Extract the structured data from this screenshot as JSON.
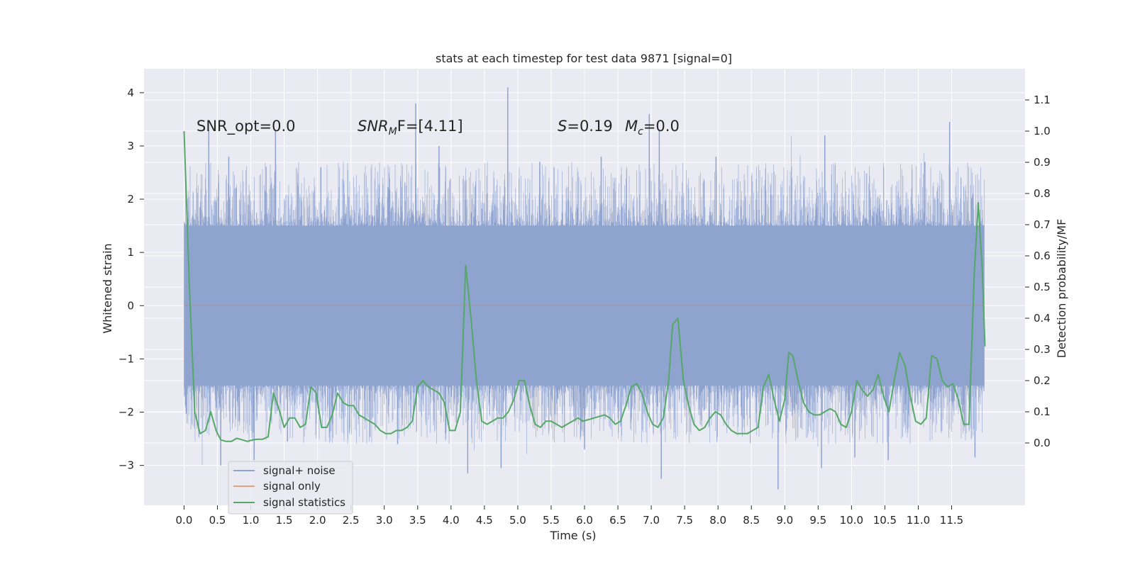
{
  "chart_data": {
    "type": "line",
    "title": "stats at each timestep for test data 9871 [signal=0]",
    "xlabel": "Time (s)",
    "ylabel_left": "Whitened strain",
    "ylabel_right": "Detection probability/MF",
    "xlim": [
      -0.6,
      12.6
    ],
    "ylim_left": [
      -3.75,
      4.45
    ],
    "ylim_right": [
      -0.2,
      1.2
    ],
    "x_ticks": [
      0.0,
      0.5,
      1.0,
      1.5,
      2.0,
      2.5,
      3.0,
      3.5,
      4.0,
      4.5,
      5.0,
      5.5,
      6.0,
      6.5,
      7.0,
      7.5,
      8.0,
      8.5,
      9.0,
      9.5,
      10.0,
      10.5,
      11.0,
      11.5
    ],
    "x_tick_labels": [
      "0.0",
      "0.5",
      "1.0",
      "1.5",
      "2.0",
      "2.5",
      "3.0",
      "3.5",
      "4.0",
      "4.5",
      "5.0",
      "5.5",
      "6.0",
      "6.5",
      "7.0",
      "7.5",
      "8.0",
      "8.5",
      "9.0",
      "9.5",
      "10.0",
      "10.5",
      "11.0",
      "11.5"
    ],
    "y_ticks_left": [
      -3,
      -2,
      -1,
      0,
      1,
      2,
      3,
      4
    ],
    "y_tick_labels_left": [
      "−3",
      "−2",
      "−1",
      "0",
      "1",
      "2",
      "3",
      "4"
    ],
    "y_ticks_right": [
      0.0,
      0.1,
      0.2,
      0.3,
      0.4,
      0.5,
      0.6,
      0.7,
      0.8,
      0.9,
      1.0,
      1.1
    ],
    "y_tick_labels_right": [
      "0.0",
      "0.1",
      "0.2",
      "0.3",
      "0.4",
      "0.5",
      "0.6",
      "0.7",
      "0.8",
      "0.9",
      "1.0",
      "1.1"
    ],
    "grid": true,
    "legend_position": "lower-left",
    "annotations": {
      "snr_opt": "SNR_opt=0.0",
      "snr_mf_main": "SNR",
      "snr_mf_sub": "M",
      "snr_mf_rest": "F=[4.11]",
      "s_main": "S",
      "s_rest": "=0.19",
      "mc_main": "M",
      "mc_sub": "c",
      "mc_rest": "=0.0"
    },
    "series": [
      {
        "name": "signal+ noise",
        "color": "#8fa3cf",
        "kind": "noise",
        "x_range": [
          0.0,
          11.99
        ],
        "core_band": [
          -1.5,
          1.5
        ],
        "extremes": [
          -3.45,
          4.1
        ],
        "peaks": [
          [
            0.37,
            3.3
          ],
          [
            0.67,
            2.8
          ],
          [
            1.37,
            3.3
          ],
          [
            2.05,
            2.6
          ],
          [
            3.47,
            3.8
          ],
          [
            3.82,
            3.0
          ],
          [
            4.85,
            4.1
          ],
          [
            5.33,
            2.7
          ],
          [
            6.25,
            2.8
          ],
          [
            6.97,
            3.6
          ],
          [
            7.12,
            3.3
          ],
          [
            7.97,
            2.8
          ],
          [
            9.6,
            3.2
          ],
          [
            11.47,
            3.45
          ],
          [
            11.1,
            2.7
          ],
          [
            1.55,
            -2.55
          ],
          [
            0.55,
            -3.0
          ],
          [
            1.05,
            -2.9
          ],
          [
            4.25,
            -3.15
          ],
          [
            4.75,
            -3.05
          ],
          [
            7.15,
            -3.25
          ],
          [
            8.9,
            -3.45
          ],
          [
            9.55,
            -3.05
          ],
          [
            10.55,
            -2.9
          ],
          [
            10.05,
            -2.85
          ],
          [
            11.85,
            -2.85
          ],
          [
            3.2,
            -2.6
          ],
          [
            6.0,
            -2.7
          ]
        ]
      },
      {
        "name": "signal only",
        "color": "#dd8452",
        "kind": "flat",
        "value": 0.0
      },
      {
        "name": "signal statistics",
        "color": "#55a868",
        "axis": "right",
        "points": [
          [
            0.0,
            1.0
          ],
          [
            0.08,
            0.5
          ],
          [
            0.16,
            0.1
          ],
          [
            0.24,
            0.03
          ],
          [
            0.32,
            0.04
          ],
          [
            0.4,
            0.1
          ],
          [
            0.48,
            0.04
          ],
          [
            0.55,
            0.01
          ],
          [
            0.63,
            0.005
          ],
          [
            0.71,
            0.005
          ],
          [
            0.79,
            0.015
          ],
          [
            0.87,
            0.01
          ],
          [
            0.95,
            0.005
          ],
          [
            1.03,
            0.01
          ],
          [
            1.1,
            0.012
          ],
          [
            1.18,
            0.012
          ],
          [
            1.26,
            0.02
          ],
          [
            1.34,
            0.16
          ],
          [
            1.42,
            0.11
          ],
          [
            1.5,
            0.05
          ],
          [
            1.58,
            0.08
          ],
          [
            1.66,
            0.08
          ],
          [
            1.74,
            0.05
          ],
          [
            1.82,
            0.06
          ],
          [
            1.9,
            0.18
          ],
          [
            1.98,
            0.16
          ],
          [
            2.06,
            0.05
          ],
          [
            2.14,
            0.05
          ],
          [
            2.22,
            0.09
          ],
          [
            2.3,
            0.16
          ],
          [
            2.38,
            0.13
          ],
          [
            2.46,
            0.12
          ],
          [
            2.54,
            0.12
          ],
          [
            2.62,
            0.09
          ],
          [
            2.7,
            0.08
          ],
          [
            2.78,
            0.07
          ],
          [
            2.86,
            0.06
          ],
          [
            2.94,
            0.04
          ],
          [
            3.02,
            0.03
          ],
          [
            3.1,
            0.03
          ],
          [
            3.18,
            0.04
          ],
          [
            3.26,
            0.04
          ],
          [
            3.34,
            0.05
          ],
          [
            3.42,
            0.07
          ],
          [
            3.5,
            0.18
          ],
          [
            3.58,
            0.2
          ],
          [
            3.66,
            0.18
          ],
          [
            3.74,
            0.17
          ],
          [
            3.82,
            0.16
          ],
          [
            3.9,
            0.13
          ],
          [
            3.98,
            0.04
          ],
          [
            4.06,
            0.04
          ],
          [
            4.14,
            0.1
          ],
          [
            4.22,
            0.57
          ],
          [
            4.3,
            0.4
          ],
          [
            4.38,
            0.2
          ],
          [
            4.46,
            0.07
          ],
          [
            4.54,
            0.06
          ],
          [
            4.62,
            0.07
          ],
          [
            4.7,
            0.08
          ],
          [
            4.78,
            0.08
          ],
          [
            4.86,
            0.1
          ],
          [
            4.94,
            0.14
          ],
          [
            5.02,
            0.2
          ],
          [
            5.1,
            0.2
          ],
          [
            5.18,
            0.12
          ],
          [
            5.26,
            0.06
          ],
          [
            5.34,
            0.05
          ],
          [
            5.42,
            0.07
          ],
          [
            5.5,
            0.07
          ],
          [
            5.58,
            0.06
          ],
          [
            5.66,
            0.05
          ],
          [
            5.74,
            0.06
          ],
          [
            5.82,
            0.07
          ],
          [
            5.9,
            0.08
          ],
          [
            5.98,
            0.07
          ],
          [
            6.06,
            0.075
          ],
          [
            6.14,
            0.08
          ],
          [
            6.22,
            0.085
          ],
          [
            6.3,
            0.09
          ],
          [
            6.38,
            0.08
          ],
          [
            6.46,
            0.06
          ],
          [
            6.54,
            0.07
          ],
          [
            6.62,
            0.12
          ],
          [
            6.7,
            0.18
          ],
          [
            6.78,
            0.19
          ],
          [
            6.86,
            0.16
          ],
          [
            6.94,
            0.1
          ],
          [
            7.02,
            0.06
          ],
          [
            7.1,
            0.05
          ],
          [
            7.18,
            0.08
          ],
          [
            7.26,
            0.2
          ],
          [
            7.32,
            0.38
          ],
          [
            7.4,
            0.4
          ],
          [
            7.48,
            0.2
          ],
          [
            7.56,
            0.12
          ],
          [
            7.64,
            0.06
          ],
          [
            7.72,
            0.04
          ],
          [
            7.8,
            0.05
          ],
          [
            7.88,
            0.08
          ],
          [
            7.96,
            0.1
          ],
          [
            8.04,
            0.09
          ],
          [
            8.12,
            0.06
          ],
          [
            8.2,
            0.04
          ],
          [
            8.28,
            0.03
          ],
          [
            8.36,
            0.03
          ],
          [
            8.44,
            0.03
          ],
          [
            8.52,
            0.04
          ],
          [
            8.6,
            0.05
          ],
          [
            8.68,
            0.18
          ],
          [
            8.76,
            0.22
          ],
          [
            8.84,
            0.14
          ],
          [
            8.92,
            0.07
          ],
          [
            9.0,
            0.14
          ],
          [
            9.06,
            0.29
          ],
          [
            9.12,
            0.28
          ],
          [
            9.2,
            0.2
          ],
          [
            9.28,
            0.13
          ],
          [
            9.36,
            0.1
          ],
          [
            9.44,
            0.09
          ],
          [
            9.52,
            0.09
          ],
          [
            9.6,
            0.1
          ],
          [
            9.68,
            0.11
          ],
          [
            9.76,
            0.1
          ],
          [
            9.84,
            0.06
          ],
          [
            9.92,
            0.05
          ],
          [
            10.0,
            0.1
          ],
          [
            10.08,
            0.2
          ],
          [
            10.16,
            0.17
          ],
          [
            10.24,
            0.15
          ],
          [
            10.32,
            0.17
          ],
          [
            10.4,
            0.22
          ],
          [
            10.48,
            0.15
          ],
          [
            10.56,
            0.1
          ],
          [
            10.64,
            0.2
          ],
          [
            10.72,
            0.29
          ],
          [
            10.8,
            0.25
          ],
          [
            10.88,
            0.15
          ],
          [
            10.96,
            0.07
          ],
          [
            11.04,
            0.06
          ],
          [
            11.12,
            0.08
          ],
          [
            11.2,
            0.28
          ],
          [
            11.28,
            0.27
          ],
          [
            11.36,
            0.2
          ],
          [
            11.44,
            0.18
          ],
          [
            11.52,
            0.19
          ],
          [
            11.6,
            0.14
          ],
          [
            11.68,
            0.06
          ],
          [
            11.76,
            0.06
          ],
          [
            11.84,
            0.55
          ],
          [
            11.9,
            0.77
          ],
          [
            11.96,
            0.55
          ],
          [
            12.0,
            0.31
          ]
        ]
      }
    ]
  }
}
